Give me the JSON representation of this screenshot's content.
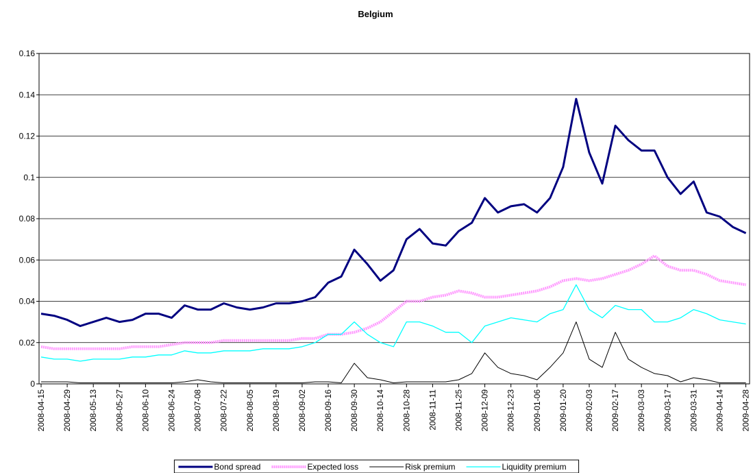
{
  "chart_data": {
    "type": "line",
    "title": "Belgium",
    "x": [
      "2008-04-15",
      "2008-04-22",
      "2008-04-29",
      "2008-05-06",
      "2008-05-13",
      "2008-05-20",
      "2008-05-27",
      "2008-06-03",
      "2008-06-10",
      "2008-06-17",
      "2008-06-24",
      "2008-07-01",
      "2008-07-08",
      "2008-07-15",
      "2008-07-22",
      "2008-07-29",
      "2008-08-05",
      "2008-08-12",
      "2008-08-19",
      "2008-08-26",
      "2008-09-02",
      "2008-09-09",
      "2008-09-16",
      "2008-09-23",
      "2008-09-30",
      "2008-10-07",
      "2008-10-14",
      "2008-10-21",
      "2008-10-28",
      "2008-11-04",
      "2008-11-11",
      "2008-11-18",
      "2008-11-25",
      "2008-12-02",
      "2008-12-09",
      "2008-12-16",
      "2008-12-23",
      "2008-12-30",
      "2009-01-06",
      "2009-01-13",
      "2009-01-20",
      "2009-01-27",
      "2009-02-03",
      "2009-02-10",
      "2009-02-17",
      "2009-02-24",
      "2009-03-03",
      "2009-03-10",
      "2009-03-17",
      "2009-03-24",
      "2009-03-31",
      "2009-04-07",
      "2009-04-14",
      "2009-04-21",
      "2009-04-28"
    ],
    "series": [
      {
        "name": "Bond spread",
        "color": "#000080",
        "values": [
          0.034,
          0.033,
          0.031,
          0.028,
          0.03,
          0.032,
          0.03,
          0.031,
          0.034,
          0.034,
          0.032,
          0.038,
          0.036,
          0.036,
          0.039,
          0.037,
          0.036,
          0.037,
          0.039,
          0.039,
          0.04,
          0.042,
          0.049,
          0.052,
          0.065,
          0.058,
          0.05,
          0.055,
          0.07,
          0.075,
          0.068,
          0.067,
          0.074,
          0.078,
          0.09,
          0.083,
          0.086,
          0.087,
          0.083,
          0.09,
          0.105,
          0.138,
          0.112,
          0.097,
          0.125,
          0.118,
          0.113,
          0.113,
          0.1,
          0.092,
          0.098,
          0.083,
          0.081,
          0.076,
          0.073
        ]
      },
      {
        "name": "Expected loss",
        "color": "#ff99ff",
        "values": [
          0.018,
          0.017,
          0.017,
          0.017,
          0.017,
          0.017,
          0.017,
          0.018,
          0.018,
          0.018,
          0.019,
          0.02,
          0.02,
          0.02,
          0.021,
          0.021,
          0.021,
          0.021,
          0.021,
          0.021,
          0.022,
          0.022,
          0.024,
          0.024,
          0.025,
          0.027,
          0.03,
          0.035,
          0.04,
          0.04,
          0.042,
          0.043,
          0.045,
          0.044,
          0.042,
          0.042,
          0.043,
          0.044,
          0.045,
          0.047,
          0.05,
          0.051,
          0.05,
          0.051,
          0.053,
          0.055,
          0.058,
          0.062,
          0.057,
          0.055,
          0.055,
          0.053,
          0.05,
          0.049,
          0.048
        ]
      },
      {
        "name": "Risk premium",
        "color": "#000000",
        "values": [
          0.001,
          0.001,
          0.001,
          0.0005,
          0.0005,
          0.0005,
          0.0005,
          0.0005,
          0.0005,
          0.0005,
          0.0005,
          0.001,
          0.002,
          0.001,
          0.0005,
          0.0005,
          0.0005,
          0.0005,
          0.0005,
          0.0005,
          0.0005,
          0.001,
          0.001,
          0.0005,
          0.01,
          0.003,
          0.002,
          0.0005,
          0.001,
          0.001,
          0.001,
          0.001,
          0.002,
          0.005,
          0.015,
          0.008,
          0.005,
          0.004,
          0.002,
          0.008,
          0.015,
          0.03,
          0.012,
          0.008,
          0.025,
          0.012,
          0.008,
          0.005,
          0.004,
          0.001,
          0.003,
          0.002,
          0.0005,
          0.0005,
          0.0005
        ]
      },
      {
        "name": "Liquidity premium",
        "color": "#00ffff",
        "values": [
          0.013,
          0.012,
          0.012,
          0.011,
          0.012,
          0.012,
          0.012,
          0.013,
          0.013,
          0.014,
          0.014,
          0.016,
          0.015,
          0.015,
          0.016,
          0.016,
          0.016,
          0.017,
          0.017,
          0.017,
          0.018,
          0.02,
          0.024,
          0.024,
          0.03,
          0.024,
          0.02,
          0.018,
          0.03,
          0.03,
          0.028,
          0.025,
          0.025,
          0.02,
          0.028,
          0.03,
          0.032,
          0.031,
          0.03,
          0.034,
          0.036,
          0.048,
          0.036,
          0.032,
          0.038,
          0.036,
          0.036,
          0.03,
          0.03,
          0.032,
          0.036,
          0.034,
          0.031,
          0.03,
          0.029
        ]
      }
    ],
    "xlim": [
      "2008-04-15",
      "2009-04-30"
    ],
    "xticks": [
      "2008-04-15",
      "2008-04-29",
      "2008-05-13",
      "2008-05-27",
      "2008-06-10",
      "2008-06-24",
      "2008-07-08",
      "2008-07-22",
      "2008-08-05",
      "2008-08-19",
      "2008-09-02",
      "2008-09-16",
      "2008-09-30",
      "2008-10-14",
      "2008-10-28",
      "2008-11-11",
      "2008-11-25",
      "2008-12-09",
      "2008-12-23",
      "2009-01-06",
      "2009-01-20",
      "2009-02-03",
      "2009-02-17",
      "2009-03-03",
      "2009-03-17",
      "2009-03-31",
      "2009-04-14",
      "2009-04-28"
    ],
    "ylim": [
      0,
      0.16
    ],
    "yticks": [
      0,
      0.02,
      0.04,
      0.06,
      0.08,
      0.1,
      0.12,
      0.14,
      0.16
    ],
    "grid": true,
    "legend": "bottom"
  }
}
